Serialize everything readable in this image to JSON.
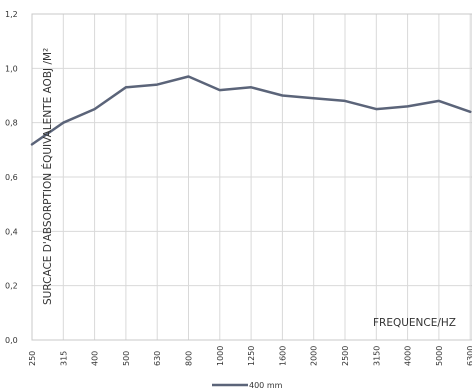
{
  "chart_data": {
    "type": "line",
    "title": "",
    "xlabel": "FREQUENCE/HZ",
    "ylabel": "SURCACE D'ABSORPTION ÉQUIVALENTE AOBJ /M²",
    "ylim": [
      0,
      1.2
    ],
    "yticks": [
      "0,0",
      "0,2",
      "0,4",
      "0,6",
      "0,8",
      "1,0",
      "1,2"
    ],
    "categories": [
      "250",
      "315",
      "400",
      "500",
      "630",
      "800",
      "1000",
      "1250",
      "1600",
      "2000",
      "2500",
      "3150",
      "4000",
      "5000",
      "6300"
    ],
    "grid": true,
    "legend_position": "bottom-center",
    "series": [
      {
        "name": "400 mm",
        "color": "#5b6479",
        "values": [
          0.72,
          0.8,
          0.85,
          0.93,
          0.94,
          0.97,
          0.92,
          0.93,
          0.9,
          0.89,
          0.88,
          0.85,
          0.86,
          0.88,
          0.84
        ]
      }
    ]
  }
}
